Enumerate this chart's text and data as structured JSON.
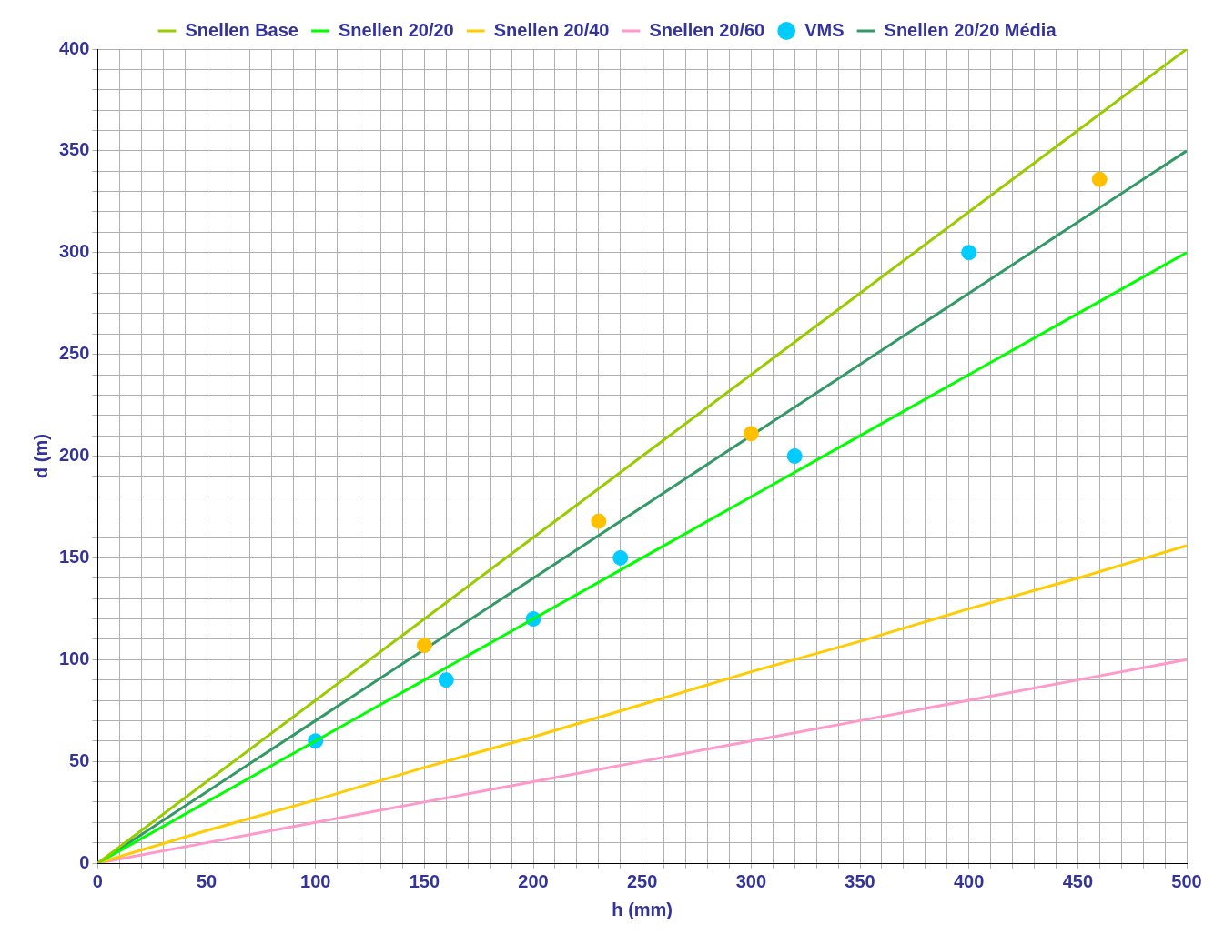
{
  "chart_data": {
    "type": "line",
    "xlabel": "h (mm)",
    "ylabel": "d (m)",
    "xlim": [
      0,
      500
    ],
    "ylim": [
      0,
      400
    ],
    "xticks": [
      0,
      {
        "value": 10,
        "label": null
      },
      {
        "value": 20,
        "label": null
      },
      {
        "value": 30,
        "label": null
      },
      {
        "value": 40,
        "label": null
      },
      50,
      {
        "value": 60,
        "label": null
      },
      {
        "value": 70,
        "label": null
      },
      {
        "value": 80,
        "label": null
      },
      {
        "value": 90,
        "label": null
      },
      100,
      {
        "value": 110,
        "label": null
      },
      {
        "value": 120,
        "label": null
      },
      {
        "value": 130,
        "label": null
      },
      {
        "value": 140,
        "label": null
      },
      150,
      {
        "value": 160,
        "label": null
      },
      {
        "value": 170,
        "label": null
      },
      {
        "value": 180,
        "label": null
      },
      {
        "value": 190,
        "label": null
      },
      200,
      {
        "value": 210,
        "label": null
      },
      {
        "value": 220,
        "label": null
      },
      {
        "value": 230,
        "label": null
      },
      {
        "value": 240,
        "label": null
      },
      250,
      {
        "value": 260,
        "label": null
      },
      {
        "value": 270,
        "label": null
      },
      {
        "value": 280,
        "label": null
      },
      {
        "value": 290,
        "label": null
      },
      300,
      {
        "value": 310,
        "label": null
      },
      {
        "value": 320,
        "label": null
      },
      {
        "value": 330,
        "label": null
      },
      {
        "value": 340,
        "label": null
      },
      350,
      {
        "value": 360,
        "label": null
      },
      {
        "value": 370,
        "label": null
      },
      {
        "value": 380,
        "label": null
      },
      {
        "value": 390,
        "label": null
      },
      400,
      {
        "value": 410,
        "label": null
      },
      {
        "value": 420,
        "label": null
      },
      {
        "value": 430,
        "label": null
      },
      {
        "value": 440,
        "label": null
      },
      450,
      {
        "value": 460,
        "label": null
      },
      {
        "value": 470,
        "label": null
      },
      {
        "value": 480,
        "label": null
      },
      {
        "value": 490,
        "label": null
      },
      500
    ],
    "yticks": [
      0,
      {
        "value": 10,
        "label": null
      },
      {
        "value": 20,
        "label": null
      },
      {
        "value": 30,
        "label": null
      },
      {
        "value": 40,
        "label": null
      },
      50,
      {
        "value": 60,
        "label": null
      },
      {
        "value": 70,
        "label": null
      },
      {
        "value": 80,
        "label": null
      },
      {
        "value": 90,
        "label": null
      },
      100,
      {
        "value": 110,
        "label": null
      },
      {
        "value": 120,
        "label": null
      },
      {
        "value": 130,
        "label": null
      },
      {
        "value": 140,
        "label": null
      },
      150,
      {
        "value": 160,
        "label": null
      },
      {
        "value": 170,
        "label": null
      },
      {
        "value": 180,
        "label": null
      },
      {
        "value": 190,
        "label": null
      },
      200,
      {
        "value": 210,
        "label": null
      },
      {
        "value": 220,
        "label": null
      },
      {
        "value": 230,
        "label": null
      },
      {
        "value": 240,
        "label": null
      },
      250,
      {
        "value": 260,
        "label": null
      },
      {
        "value": 270,
        "label": null
      },
      {
        "value": 280,
        "label": null
      },
      {
        "value": 290,
        "label": null
      },
      300,
      {
        "value": 310,
        "label": null
      },
      {
        "value": 320,
        "label": null
      },
      {
        "value": 330,
        "label": null
      },
      {
        "value": 340,
        "label": null
      },
      350,
      {
        "value": 360,
        "label": null
      },
      {
        "value": 370,
        "label": null
      },
      {
        "value": 380,
        "label": null
      },
      {
        "value": 390,
        "label": null
      },
      400
    ],
    "grid": true,
    "legend": "top",
    "line_style": "solid",
    "series": [
      {
        "name": "Snellen Base",
        "marker": "none",
        "color": "#99cc00",
        "x": [
          0,
          50,
          100,
          150,
          200,
          250,
          300,
          350,
          400,
          450,
          500
        ],
        "values": [
          0,
          40,
          80,
          120,
          160,
          200,
          240,
          280,
          320,
          360,
          400
        ]
      },
      {
        "name": "Snellen 20/20",
        "marker": "none",
        "color": "#00ff00",
        "x": [
          0,
          50,
          100,
          150,
          200,
          250,
          300,
          350,
          400,
          450,
          500
        ],
        "values": [
          0,
          30,
          60,
          90,
          120,
          150,
          180,
          210,
          240,
          270,
          300
        ]
      },
      {
        "name": "Snellen 20/40",
        "marker": "none",
        "color": "#ffcc00",
        "x": [
          0,
          50,
          100,
          150,
          200,
          250,
          300,
          350,
          400,
          450,
          500
        ],
        "values": [
          0,
          16,
          31,
          47,
          62,
          78,
          94,
          109,
          125,
          140,
          156
        ]
      },
      {
        "name": "Snellen 20/60",
        "marker": "none",
        "color": "#ff99cc",
        "x": [
          0,
          50,
          100,
          150,
          200,
          250,
          300,
          350,
          400,
          450,
          500
        ],
        "values": [
          0,
          10,
          20,
          30,
          40,
          50,
          60,
          70,
          80,
          90,
          100
        ]
      },
      {
        "name": "VMS",
        "type": "scatter",
        "marker": "circle",
        "color": "#00ccff",
        "x": [
          100,
          160,
          200,
          240,
          320,
          400
        ],
        "values": [
          60,
          90,
          120,
          150,
          200,
          300
        ]
      },
      {
        "type": "scatter",
        "marker": "circle",
        "color": "#ffc000",
        "x": [
          150,
          230,
          300,
          460
        ],
        "values": [
          107,
          168,
          211,
          336
        ]
      },
      {
        "name": "Snellen 20/20 Média",
        "marker": "none",
        "color": "#339966",
        "x": [
          0,
          50,
          100,
          150,
          200,
          250,
          350,
          400,
          450,
          500
        ],
        "values": [
          0,
          35,
          70,
          105,
          140,
          175,
          245,
          280,
          315,
          350
        ]
      }
    ]
  }
}
